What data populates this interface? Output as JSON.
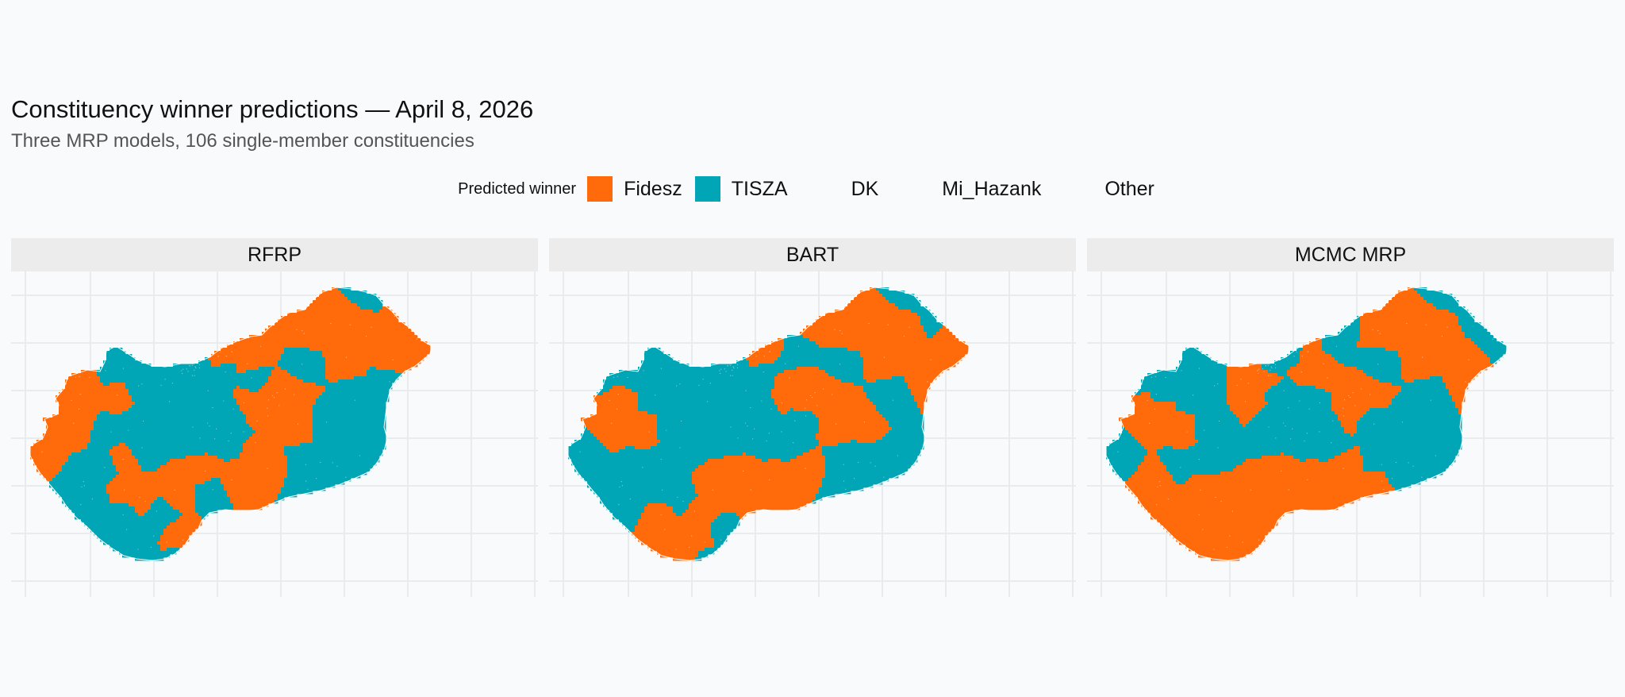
{
  "title": "Constituency winner predictions — April 8, 2026",
  "subtitle": "Three MRP models, 106 single-member constituencies",
  "legend": {
    "title": "Predicted winner",
    "items": [
      {
        "label": "Fidesz",
        "color": "#ff6b0a"
      },
      {
        "label": "TISZA",
        "color": "#00a6b6"
      },
      {
        "label": "DK",
        "color": ""
      },
      {
        "label": "Mi_Hazank",
        "color": ""
      },
      {
        "label": "Other",
        "color": ""
      }
    ]
  },
  "colors": {
    "fidesz": "#ff6b0a",
    "tisza": "#00a6b6",
    "border": "#ffffff",
    "grid": "#e9ecef",
    "strip": "#ececec",
    "background": "#f8fafc"
  },
  "panels": [
    {
      "label": "RFRP"
    },
    {
      "label": "BART"
    },
    {
      "label": "MCMC MRP"
    }
  ]
}
